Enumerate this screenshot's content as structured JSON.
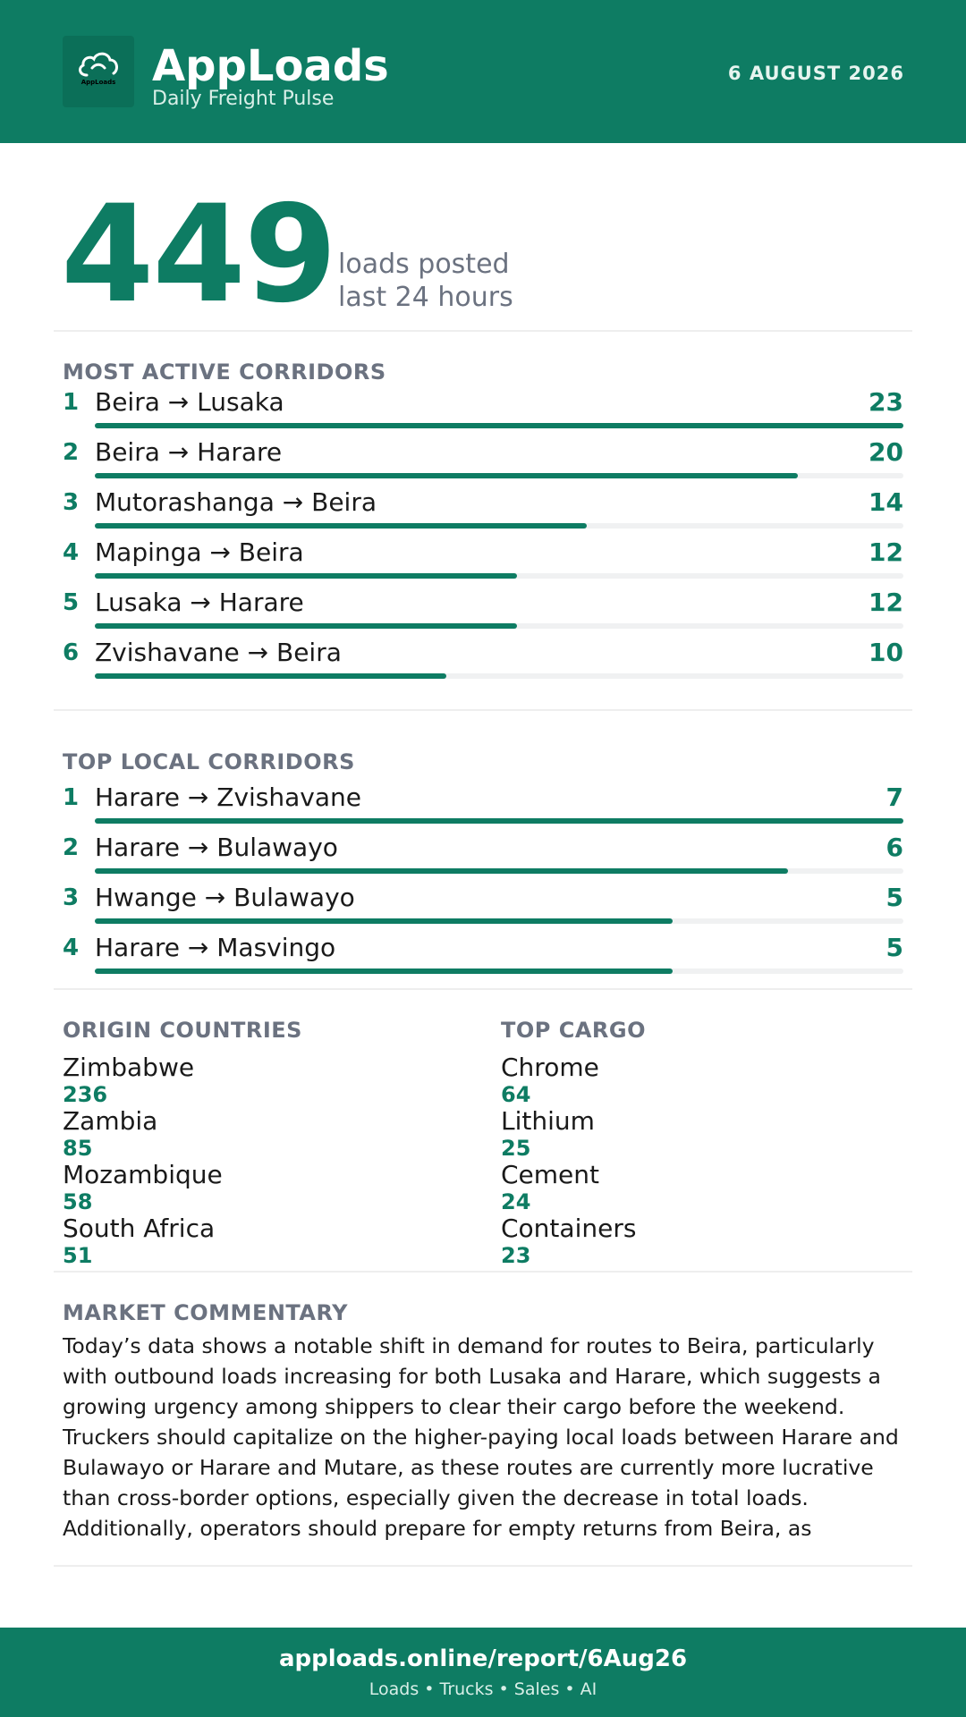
{
  "header": {
    "brand": "AppLoads",
    "tagline": "Daily Freight Pulse",
    "date": "6 AUGUST 2026",
    "logo_text": "AppLoads",
    "logo_icon": "cloud-icon"
  },
  "hero": {
    "value": "449",
    "caption_line1": "loads posted",
    "caption_line2": "last 24 hours"
  },
  "most_active": {
    "title": "MOST ACTIVE CORRIDORS",
    "items": [
      {
        "rank": "1",
        "route": "Beira → Lusaka",
        "count": 23
      },
      {
        "rank": "2",
        "route": "Beira → Harare",
        "count": 20
      },
      {
        "rank": "3",
        "route": "Mutorashanga → Beira",
        "count": 14
      },
      {
        "rank": "4",
        "route": "Mapinga → Beira",
        "count": 12
      },
      {
        "rank": "5",
        "route": "Lusaka → Harare",
        "count": 12
      },
      {
        "rank": "6",
        "route": "Zvishavane → Beira",
        "count": 10
      }
    ]
  },
  "top_local": {
    "title": "TOP LOCAL CORRIDORS",
    "items": [
      {
        "rank": "1",
        "route": "Harare → Zvishavane",
        "count": 7
      },
      {
        "rank": "2",
        "route": "Harare → Bulawayo",
        "count": 6
      },
      {
        "rank": "3",
        "route": "Hwange → Bulawayo",
        "count": 5
      },
      {
        "rank": "4",
        "route": "Harare → Masvingo",
        "count": 5
      }
    ]
  },
  "origin_countries": {
    "title": "ORIGIN COUNTRIES",
    "items": [
      {
        "name": "Zimbabwe",
        "value": "236"
      },
      {
        "name": "Zambia",
        "value": "85"
      },
      {
        "name": "Mozambique",
        "value": "58"
      },
      {
        "name": "South Africa",
        "value": "51"
      }
    ]
  },
  "top_cargo": {
    "title": "TOP CARGO",
    "items": [
      {
        "name": "Chrome",
        "value": "64"
      },
      {
        "name": "Lithium",
        "value": "25"
      },
      {
        "name": "Cement",
        "value": "24"
      },
      {
        "name": "Containers",
        "value": "23"
      }
    ]
  },
  "commentary": {
    "title": "MARKET COMMENTARY",
    "text": "Today’s data shows a notable shift in demand for routes to Beira, particularly with outbound loads increasing for both Lusaka and Harare, which suggests a growing urgency among shippers to clear their cargo before the weekend. Truckers should capitalize on the higher-paying local loads between Harare and Bulawayo or Harare and Mutare, as these routes are currently more lucrative than cross-border options, especially given the decrease in total loads. Additionally, operators should prepare for empty returns from Beira, as"
  },
  "footer": {
    "url": "apploads.online/report/6Aug26",
    "links": "Loads • Trucks • Sales • AI"
  },
  "colors": {
    "brand": "#0e7c63",
    "muted": "#6b7280"
  }
}
